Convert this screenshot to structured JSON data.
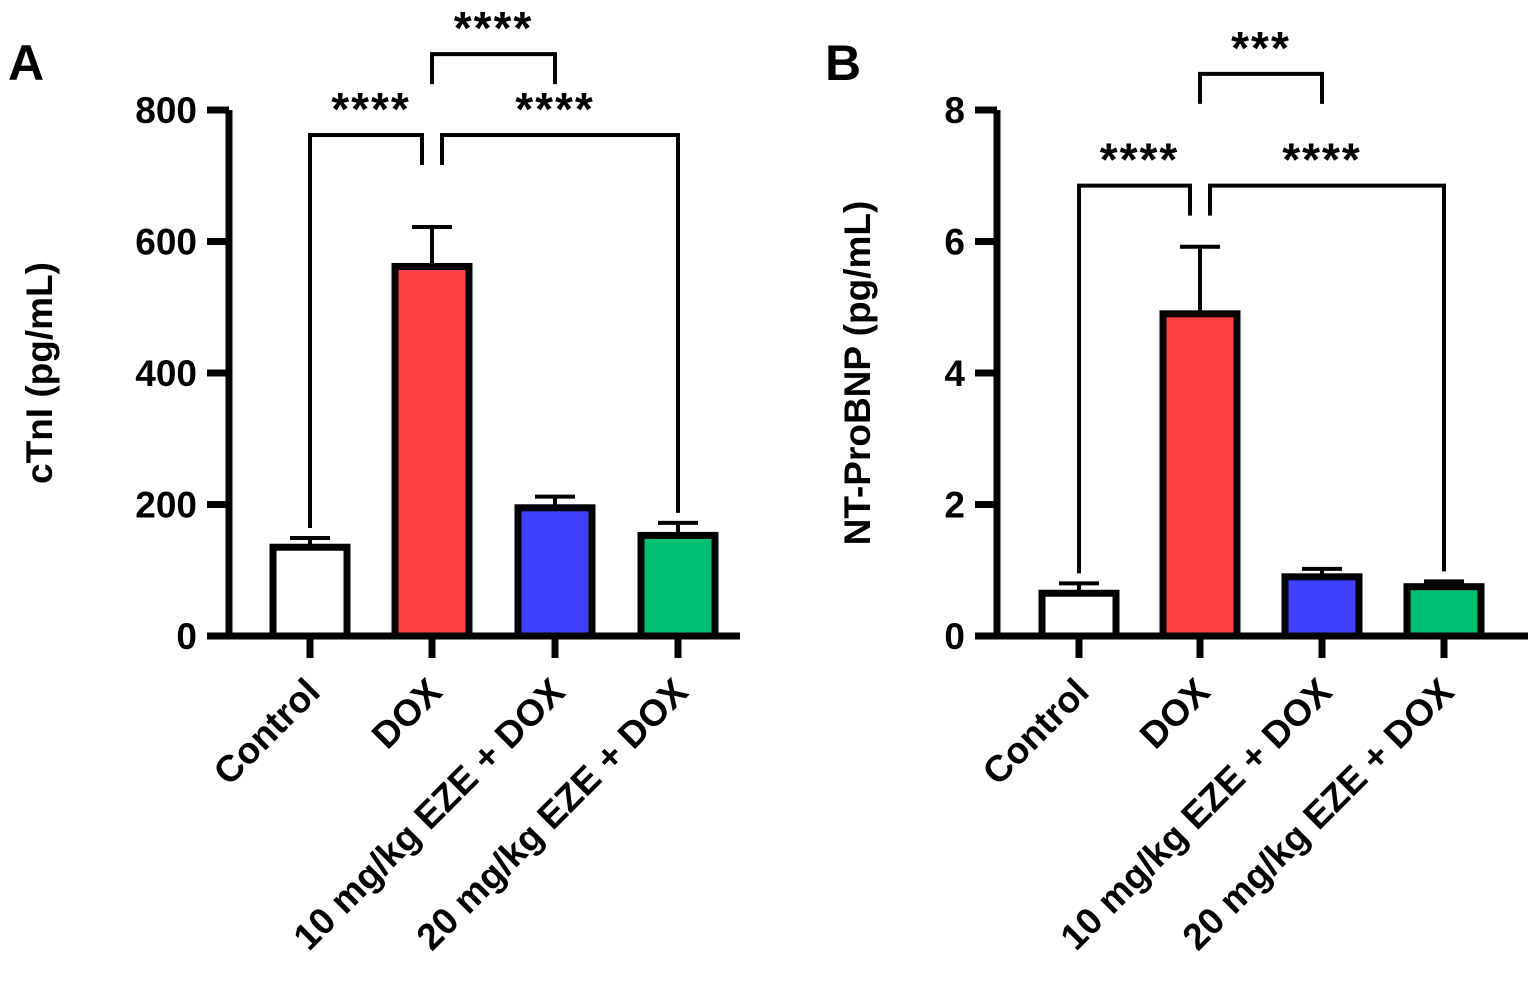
{
  "chart_data": [
    {
      "panel_label": "A",
      "type": "bar",
      "categories": [
        "Control",
        "DOX",
        "10 mg/kg EZE + DOX",
        "20 mg/kg EZE + DOX"
      ],
      "values": [
        135,
        562,
        195,
        153
      ],
      "errors": [
        14,
        60,
        17,
        19
      ],
      "ylabel": "cTnI (pg/mL)",
      "xlabel": "",
      "ylim": [
        0,
        800
      ],
      "yticks": [
        "0",
        "200",
        "400",
        "600",
        "800"
      ],
      "ytick_values": [
        0,
        200,
        400,
        600,
        800
      ],
      "colors": [
        "#ffffff",
        "#ff4040",
        "#4040ff",
        "#00bf73"
      ],
      "significance": [
        {
          "from": 0,
          "to": 1,
          "label": "****",
          "level": 762
        },
        {
          "from": 1,
          "to": 3,
          "label": "****",
          "level": 762
        },
        {
          "from": 1,
          "to": 2,
          "label": "****",
          "level": 885
        }
      ]
    },
    {
      "panel_label": "B",
      "type": "bar",
      "categories": [
        "Control",
        "DOX",
        "10 mg/kg EZE + DOX",
        "20 mg/kg EZE + DOX"
      ],
      "values": [
        0.65,
        4.9,
        0.9,
        0.75
      ],
      "errors": [
        0.15,
        1.02,
        0.12,
        0.08
      ],
      "ylabel": "NT-ProBNP (pg/mL)",
      "xlabel": "",
      "ylim": [
        0,
        8
      ],
      "yticks": [
        "0",
        "2",
        "4",
        "6",
        "8"
      ],
      "ytick_values": [
        0,
        2,
        4,
        6,
        8
      ],
      "colors": [
        "#ffffff",
        "#ff4040",
        "#4040ff",
        "#00bf73"
      ],
      "significance": [
        {
          "from": 0,
          "to": 1,
          "label": "****",
          "level": 6.85
        },
        {
          "from": 1,
          "to": 3,
          "label": "****",
          "level": 6.85
        },
        {
          "from": 1,
          "to": 2,
          "label": "***",
          "level": 8.55
        }
      ]
    }
  ]
}
